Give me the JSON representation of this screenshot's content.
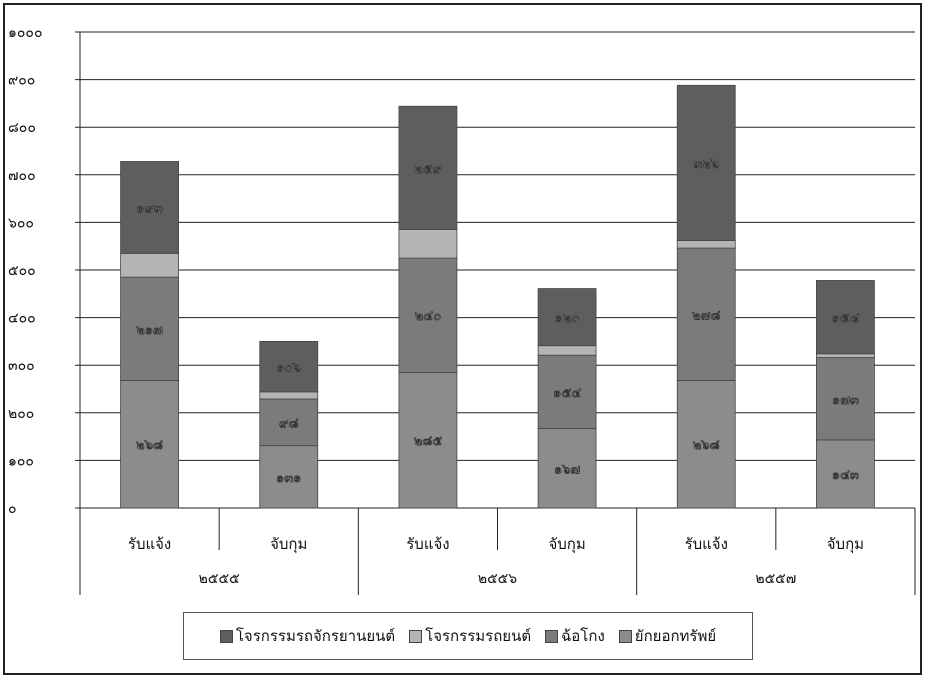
{
  "chart_data": {
    "type": "bar",
    "stacked": true,
    "y_ticks": [
      "๑๐๐๐",
      "๙๐๐",
      "๘๐๐",
      "๗๐๐",
      "๖๐๐",
      "๕๐๐",
      "๔๐๐",
      "๓๐๐",
      "๒๐๐",
      "๑๐๐",
      "๐"
    ],
    "ylim": [
      0,
      1000
    ],
    "grid": true,
    "legend_position": "bottom",
    "categories": [
      "รับแจ้ง",
      "จับกุม",
      "รับแจ้ง",
      "จับกุม",
      "รับแจ้ง",
      "จับกุม"
    ],
    "groups": [
      "๒๕๕๕",
      "๒๕๕๖",
      "๒๕๕๗"
    ],
    "series": [
      {
        "name": "ยักยอกทรัพย์",
        "color": "#8c8c8c",
        "values": [
          268,
          131,
          285,
          167,
          268,
          143
        ],
        "labels": [
          "๒๖๘",
          "๑๓๑",
          "๒๘๕",
          "๑๖๗",
          "๒๖๘",
          "๑๔๓"
        ]
      },
      {
        "name": "ฉ้อโกง",
        "color": "#7b7b7b",
        "values": [
          217,
          98,
          240,
          154,
          278,
          173
        ],
        "labels": [
          "๒๑๗",
          "๙๘",
          "๒๔๐",
          "๑๕๔",
          "๒๗๘",
          "๑๗๓"
        ]
      },
      {
        "name": "โจรกรรมรถยนต์",
        "color": "#b4b4b4",
        "values": [
          50,
          15,
          60,
          20,
          16,
          8
        ],
        "labels": [
          "",
          "",
          "",
          "",
          "",
          ""
        ]
      },
      {
        "name": "โจรกรรมรถจักรยานยนต์",
        "color": "#5e5e5e",
        "values": [
          193,
          106,
          259,
          120,
          326,
          154
        ],
        "labels": [
          "๑๙๓",
          "๑๐๖",
          "๒๕๙",
          "๑๒๐",
          "๓๒๖",
          "๑๕๔"
        ]
      }
    ]
  }
}
